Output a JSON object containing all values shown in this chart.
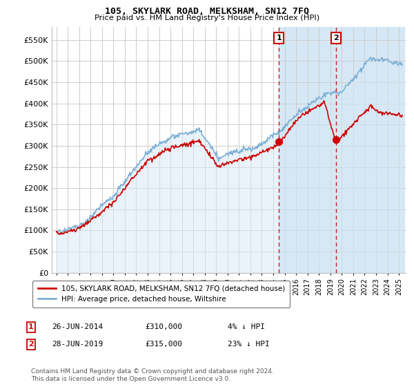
{
  "title": "105, SKYLARK ROAD, MELKSHAM, SN12 7FQ",
  "subtitle": "Price paid vs. HM Land Registry's House Price Index (HPI)",
  "ylim": [
    0,
    580000
  ],
  "yticks": [
    0,
    50000,
    100000,
    150000,
    200000,
    250000,
    300000,
    350000,
    400000,
    450000,
    500000,
    550000
  ],
  "sale1_date": "26-JUN-2014",
  "sale1_price": 310000,
  "sale1_label": "4% ↓ HPI",
  "sale1_x": 2014.49,
  "sale2_date": "28-JUN-2019",
  "sale2_price": 315000,
  "sale2_label": "23% ↓ HPI",
  "sale2_x": 2019.49,
  "red_line_color": "#cc0000",
  "blue_line_color": "#7bafd4",
  "blue_fill_color": "#d6e8f5",
  "grid_color": "#cccccc",
  "legend_label_red": "105, SKYLARK ROAD, MELKSHAM, SN12 7FQ (detached house)",
  "legend_label_blue": "HPI: Average price, detached house, Wiltshire",
  "footnote": "Contains HM Land Registry data © Crown copyright and database right 2024.\nThis data is licensed under the Open Government Licence v3.0.",
  "marker_color": "#cc0000",
  "vline_color": "#cc0000",
  "sale_marker_size": 7,
  "box_color": "#cc0000",
  "xstart": 1995,
  "xend": 2025
}
